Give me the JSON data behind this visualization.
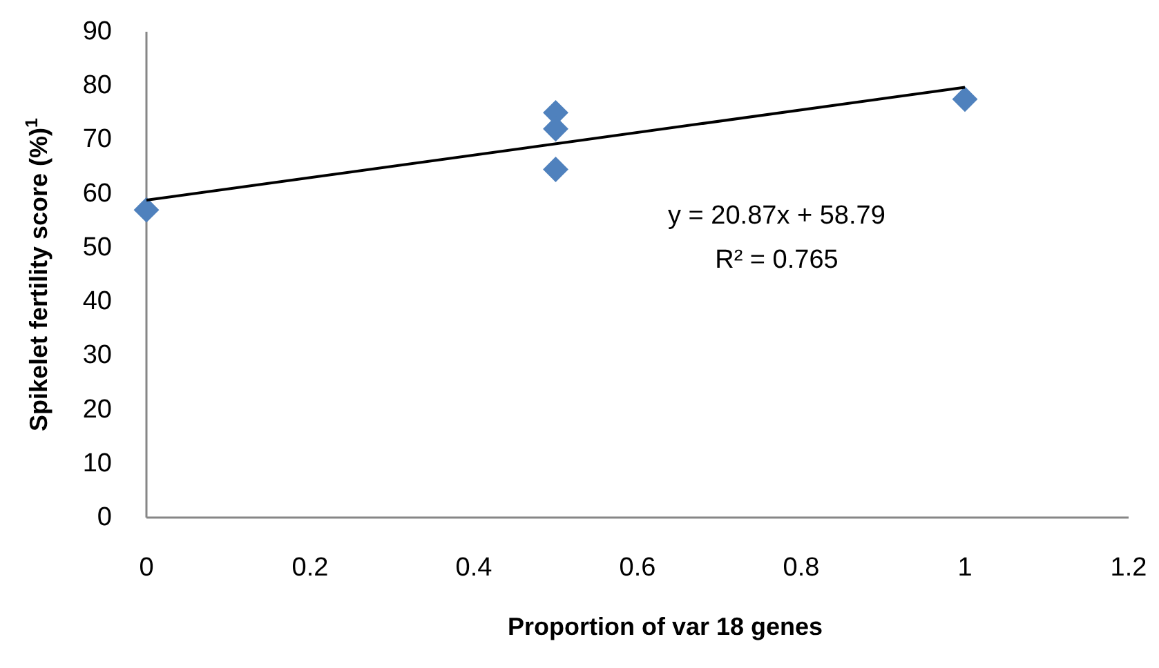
{
  "chart_data": {
    "type": "scatter",
    "xlabel": "Proportion of var 18 genes",
    "ylabel": "Spikelet fertility score (%)$^{1}$",
    "marker": "diamond",
    "grid": false,
    "xlim": [
      0,
      1.2
    ],
    "xticks": [
      0,
      0.2,
      0.4,
      0.6,
      0.8,
      1,
      1.2
    ],
    "ylim": [
      0,
      90
    ],
    "yticks": [
      0,
      10,
      20,
      30,
      40,
      50,
      60,
      70,
      80,
      90
    ],
    "series": [
      {
        "color": "#4f81bd",
        "x": [
          0,
          0.5,
          0.5,
          0.5,
          1
        ],
        "values": [
          57,
          75,
          72,
          64.5,
          77.5
        ]
      },
      {
        "type": "line",
        "marker": "none",
        "color": "#000000",
        "x": [
          0,
          1
        ],
        "values": [
          58.8,
          79.7
        ]
      }
    ],
    "annotations": [
      "y = 20.87x + 58.79",
      "R² = 0.765"
    ]
  }
}
